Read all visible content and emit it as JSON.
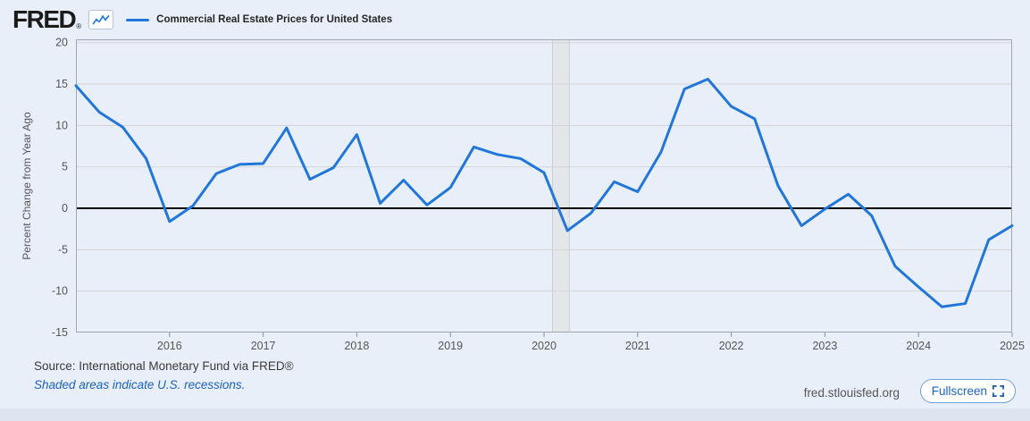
{
  "page": {
    "background": "#e9eff9",
    "footer_strip_color": "#dde5f1"
  },
  "header": {
    "logo": "FRED",
    "logo_registered": "®",
    "series_label": "Commercial Real Estate Prices for United States"
  },
  "axis": {
    "y_label": "Percent Change from Year Ago"
  },
  "footer": {
    "source": "Source: International Monetary Fund via FRED®",
    "recession_note": "Shaded areas indicate U.S. recessions.",
    "site": "fred.stlouisfed.org",
    "fullscreen_label": "Fullscreen"
  },
  "chart_data": {
    "type": "line",
    "title": "Commercial Real Estate Prices for United States",
    "ylabel": "Percent Change from Year Ago",
    "ylim": [
      -15,
      20.4
    ],
    "y_ticks": [
      20,
      15,
      10,
      5,
      0,
      -5,
      -10,
      -15
    ],
    "x_ticks": [
      2016,
      2017,
      2018,
      2019,
      2020,
      2021,
      2022,
      2023,
      2024,
      2025
    ],
    "x_start_year": 2015.0,
    "x_end_year": 2025.0,
    "x_step_years": 0.25,
    "grid": true,
    "zero_line": true,
    "legend_position": "top-left-header",
    "line_color": "#2176d9",
    "grid_color": "#d3d3d3",
    "border_color": "#a0a6ae",
    "recession_band": {
      "start_year": 2020.09,
      "end_year": 2020.27,
      "color": "#e4e7ea",
      "edge_color": "#c9ced4",
      "meaning": "U.S. recession"
    },
    "quarters": [
      "2015 Q1",
      "2015 Q2",
      "2015 Q3",
      "2015 Q4",
      "2016 Q1",
      "2016 Q2",
      "2016 Q3",
      "2016 Q4",
      "2017 Q1",
      "2017 Q2",
      "2017 Q3",
      "2017 Q4",
      "2018 Q1",
      "2018 Q2",
      "2018 Q3",
      "2018 Q4",
      "2019 Q1",
      "2019 Q2",
      "2019 Q3",
      "2019 Q4",
      "2020 Q1",
      "2020 Q2",
      "2020 Q3",
      "2020 Q4",
      "2021 Q1",
      "2021 Q2",
      "2021 Q3",
      "2021 Q4",
      "2022 Q1",
      "2022 Q2",
      "2022 Q3",
      "2022 Q4",
      "2023 Q1",
      "2023 Q2",
      "2023 Q3",
      "2023 Q4",
      "2024 Q1",
      "2024 Q2",
      "2024 Q3",
      "2024 Q4",
      "2025 Q1"
    ],
    "values": [
      14.8,
      11.6,
      9.8,
      6.0,
      -1.6,
      0.3,
      4.2,
      5.3,
      5.4,
      9.7,
      3.5,
      4.9,
      8.9,
      0.6,
      3.4,
      0.4,
      2.5,
      7.4,
      6.5,
      6.0,
      4.3,
      -2.7,
      -0.6,
      3.2,
      2.0,
      6.8,
      14.4,
      15.6,
      12.3,
      10.8,
      2.7,
      -2.1,
      -0.1,
      1.7,
      -0.9,
      -7.0,
      -9.5,
      -11.9,
      -11.5,
      -3.8,
      -2.1
    ]
  }
}
